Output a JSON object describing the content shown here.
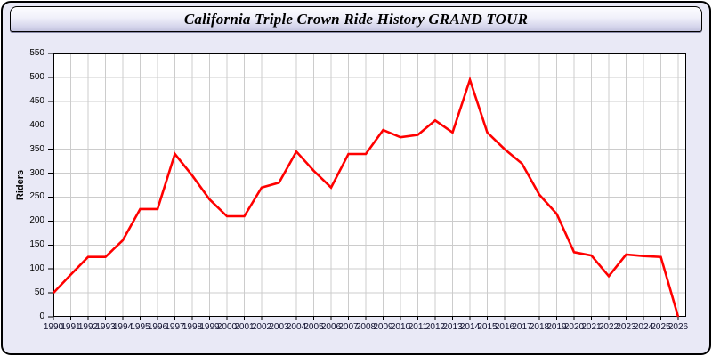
{
  "header": {
    "title": "California Triple Crown Ride History GRAND TOUR"
  },
  "chart_data": {
    "type": "line",
    "title": "California Triple Crown Ride History GRAND TOUR",
    "xlabel": "",
    "ylabel": "Riders",
    "x": [
      1990,
      1991,
      1992,
      1993,
      1994,
      1995,
      1996,
      1997,
      1998,
      1999,
      2000,
      2001,
      2002,
      2003,
      2004,
      2005,
      2006,
      2007,
      2008,
      2009,
      2010,
      2011,
      2012,
      2013,
      2014,
      2015,
      2016,
      2017,
      2018,
      2019,
      2020,
      2021,
      2022,
      2023,
      2024,
      2025,
      2026
    ],
    "series": [
      {
        "name": "Riders",
        "color": "#ff0000",
        "values": [
          50,
          88,
          125,
          125,
          160,
          225,
          225,
          340,
          295,
          245,
          210,
          210,
          270,
          280,
          345,
          305,
          270,
          340,
          340,
          390,
          375,
          380,
          410,
          385,
          495,
          385,
          350,
          320,
          255,
          215,
          135,
          128,
          85,
          130,
          127,
          125,
          0
        ]
      }
    ],
    "ylim": [
      0,
      550
    ],
    "ytick_step": 50,
    "grid": true,
    "legend_position": "none",
    "plot_background": "#ffffff",
    "grid_color": "#cccccc",
    "axis_color": "#000000",
    "tick_label_color": "#10102e"
  },
  "colors": {
    "panel_background": "#e9e9f6",
    "titlebar_gradient_top": "#fdfdff",
    "titlebar_gradient_bottom": "#c3c3de",
    "border": "#000000",
    "line": "#ff0000"
  }
}
